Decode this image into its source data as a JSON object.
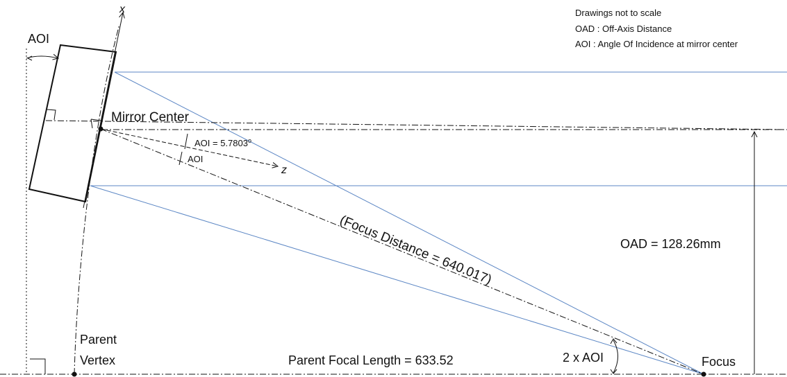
{
  "notes": {
    "line1": "Drawings not to scale",
    "line2": "OAD : Off-Axis Distance",
    "line3": "AOI : Angle Of Incidence at mirror center"
  },
  "labels": {
    "aoi_top": "AOI",
    "x_axis": "x",
    "z_axis": "z",
    "mirror_center": "Mirror Center",
    "aoi_value": "AOI = 5.7803",
    "aoi_degree": "o",
    "aoi_small": "AOI",
    "focus_distance": "(Focus Distance = 640.017)",
    "oad": "OAD = 128.26mm",
    "parent": "Parent",
    "vertex": "Vertex",
    "parent_focal_length": "Parent Focal Length = 633.52",
    "two_aoi": "2 x AOI",
    "focus": "Focus"
  },
  "colors": {
    "ray": "#5b86c4",
    "line": "#111111",
    "background": "#ffffff"
  }
}
